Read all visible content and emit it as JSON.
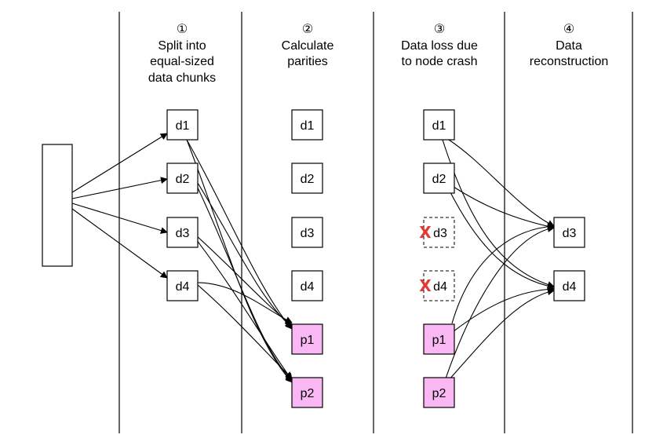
{
  "headers": [
    {
      "lines": [
        "①",
        "Split into",
        "equal-sized",
        "data chunks"
      ]
    },
    {
      "lines": [
        "②",
        "Calculate",
        "parities"
      ]
    },
    {
      "lines": [
        "③",
        "Data loss due",
        "to node crash"
      ]
    },
    {
      "lines": [
        "④",
        "Data",
        "reconstruction"
      ]
    }
  ],
  "columns": {
    "split": [
      "d1",
      "d2",
      "d3",
      "d4"
    ],
    "calculate": [
      "d1",
      "d2",
      "d3",
      "d4",
      "p1",
      "p2"
    ],
    "loss": [
      "d1",
      "d2",
      "d3",
      "d4",
      "p1",
      "p2"
    ],
    "reconstruct": [
      "d3",
      "d4"
    ]
  },
  "lost_marker": "X",
  "colors": {
    "parity_fill": "#f9b8f3",
    "lost_marker": "#e53935"
  }
}
